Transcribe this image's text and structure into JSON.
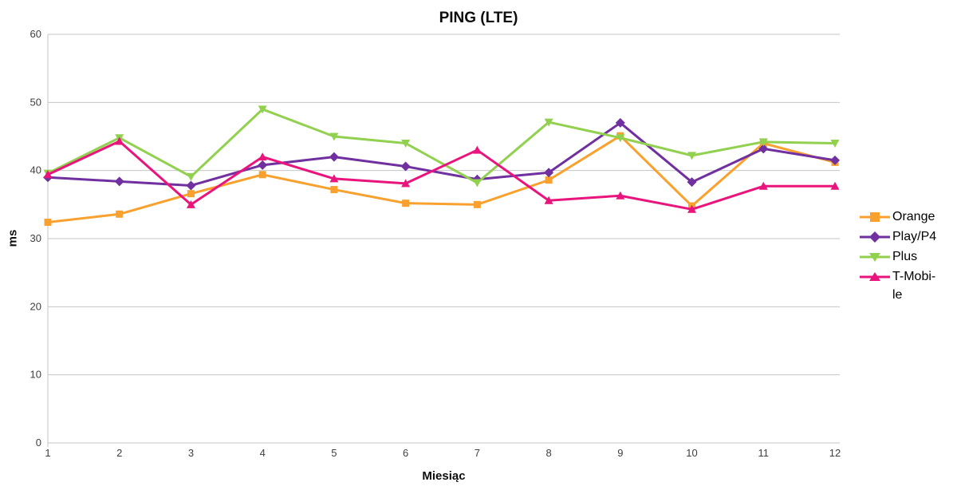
{
  "title": "PING (LTE)",
  "colors": {
    "background": "#ffffff",
    "gridline": "#c6c6c6",
    "tick_text": "#3f3f3f",
    "title_text": "#0d0d0d",
    "orange": "#f8a12e",
    "purple": "#7030a0",
    "green": "#92d050",
    "pink": "#e9157d"
  },
  "chart_data": {
    "type": "line",
    "title": "PING (LTE)",
    "xlabel": "Miesiąc",
    "ylabel": "ms",
    "ylim": [
      0,
      60
    ],
    "ytick_step": 10,
    "grid": true,
    "legend_position": "right",
    "x_ticks": [
      "1",
      "2",
      "3",
      "4",
      "5",
      "6",
      "7",
      "8",
      "9",
      "10",
      "11",
      "12"
    ],
    "y_ticks": [
      "0",
      "10",
      "20",
      "30",
      "40",
      "50",
      "60"
    ],
    "categories": [
      1,
      2,
      3,
      4,
      5,
      6,
      7,
      8,
      9,
      10,
      11,
      12
    ],
    "series": [
      {
        "name": "Orange",
        "marker": "square",
        "color": "#f8a12e",
        "values": [
          32.4,
          33.6,
          36.6,
          39.4,
          37.2,
          35.2,
          35.0,
          38.6,
          45.1,
          34.8,
          44.0,
          41.2
        ]
      },
      {
        "name": "Play/P4",
        "marker": "diamond",
        "color": "#7030a0",
        "values": [
          39.0,
          38.4,
          37.8,
          40.8,
          42.0,
          40.6,
          38.7,
          39.7,
          47.0,
          38.3,
          43.2,
          41.5
        ]
      },
      {
        "name": "Plus",
        "marker": "triangle-down",
        "color": "#92d050",
        "values": [
          39.6,
          44.8,
          39.1,
          49.0,
          45.0,
          44.0,
          38.2,
          47.1,
          44.8,
          42.2,
          44.2,
          44.0
        ]
      },
      {
        "name": "T-Mobile",
        "marker": "triangle-up",
        "color": "#e9157d",
        "display_lines": [
          "T-Mobi-",
          "le"
        ],
        "values": [
          39.4,
          44.3,
          35.0,
          42.0,
          38.8,
          38.1,
          43.0,
          35.6,
          36.3,
          34.3,
          37.7,
          37.7
        ]
      }
    ]
  }
}
